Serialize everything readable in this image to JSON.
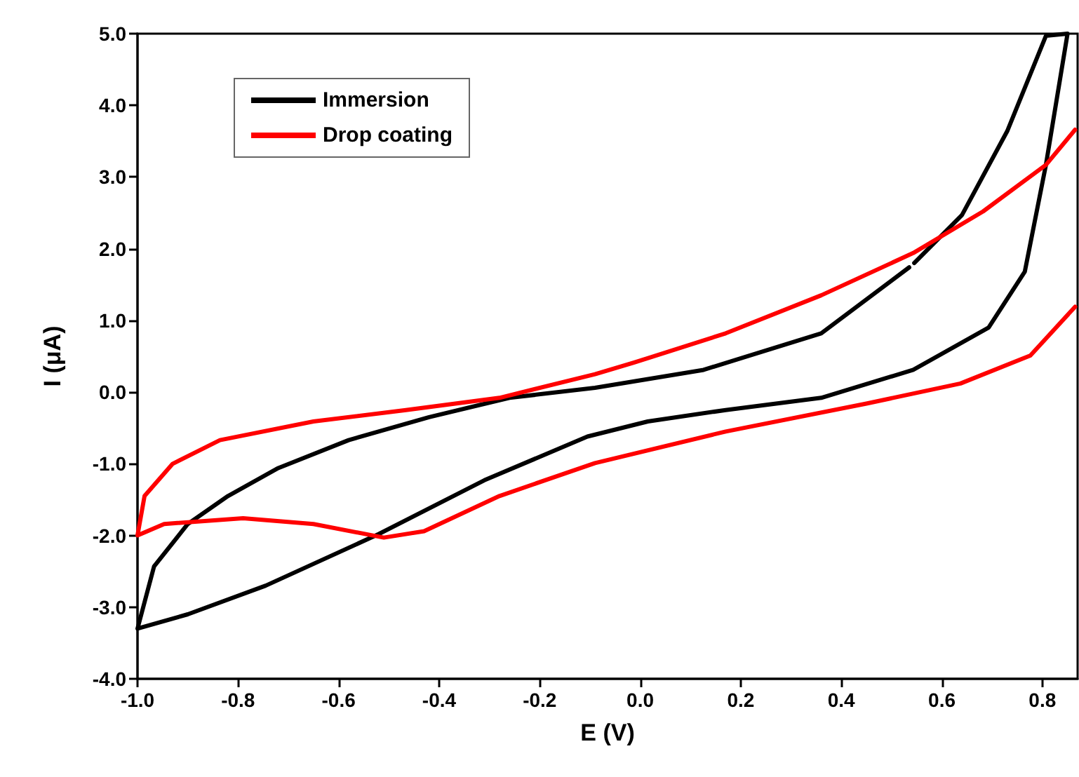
{
  "chart_data": {
    "type": "line",
    "xlabel": "E (V)",
    "ylabel": "I (μA)",
    "xlim": [
      -1.0,
      0.87
    ],
    "ylim": [
      -4.0,
      5.0
    ],
    "xticks": [
      {
        "value": -1.0,
        "label": "-1.0"
      },
      {
        "value": -0.8,
        "label": "-0.8"
      },
      {
        "value": -0.6,
        "label": "-0.6"
      },
      {
        "value": -0.4,
        "label": "-0.4"
      },
      {
        "value": -0.2,
        "label": "-0.2"
      },
      {
        "value": 0.0,
        "label": "0.0"
      },
      {
        "value": 0.2,
        "label": "0.2"
      },
      {
        "value": 0.4,
        "label": "0.4"
      },
      {
        "value": 0.6,
        "label": "0.6"
      },
      {
        "value": 0.8,
        "label": "0.8"
      }
    ],
    "yticks": [
      {
        "value": -4.0,
        "label": "-4.0"
      },
      {
        "value": -3.0,
        "label": "-3.0"
      },
      {
        "value": -2.0,
        "label": "-2.0"
      },
      {
        "value": -1.0,
        "label": "-1.0"
      },
      {
        "value": 0.0,
        "label": "0.0"
      },
      {
        "value": 1.0,
        "label": "1.0"
      },
      {
        "value": 2.0,
        "label": "2.0"
      },
      {
        "value": 3.0,
        "label": "3.0"
      },
      {
        "value": 4.0,
        "label": "4.0"
      },
      {
        "value": 5.0,
        "label": "5.0"
      }
    ],
    "grid": false,
    "legend": "top left",
    "marker": "none",
    "line_style": "solid",
    "series": [
      {
        "name": "Immersion",
        "color": "#000000",
        "x": [
          0.545,
          0.64,
          0.73,
          0.807,
          0.85,
          0.807,
          0.765,
          0.693,
          0.543,
          0.36,
          0.17,
          0.015,
          -0.105,
          -0.31,
          -0.52,
          -0.745,
          -0.9,
          -1.0,
          -0.967,
          -0.9,
          -0.82,
          -0.72,
          -0.58,
          -0.42,
          -0.26,
          -0.09,
          0.126,
          0.36,
          0.535
        ],
        "values": [
          1.8,
          2.47,
          3.64,
          4.97,
          5.0,
          3.17,
          1.68,
          0.9,
          0.31,
          -0.08,
          -0.25,
          -0.41,
          -0.62,
          -1.23,
          -1.98,
          -2.7,
          -3.1,
          -3.3,
          -2.43,
          -1.84,
          -1.45,
          -1.06,
          -0.67,
          -0.35,
          -0.08,
          0.06,
          0.31,
          0.82,
          1.74
        ]
      },
      {
        "name": "Drop coating",
        "color": "#ff0000",
        "x": [
          0.865,
          0.807,
          0.682,
          0.543,
          0.36,
          0.17,
          -0.013,
          -0.09,
          -0.28,
          -0.466,
          -0.65,
          -0.836,
          -0.93,
          -0.986,
          -1.0,
          -0.947,
          -0.79,
          -0.65,
          -0.51,
          -0.43,
          -0.28,
          -0.09,
          0.17,
          0.45,
          0.637,
          0.776,
          0.865
        ],
        "values": [
          3.66,
          3.17,
          2.52,
          1.94,
          1.35,
          0.82,
          0.41,
          0.25,
          -0.08,
          -0.25,
          -0.41,
          -0.67,
          -1.0,
          -1.45,
          -2.0,
          -1.84,
          -1.76,
          -1.84,
          -2.03,
          -1.94,
          -1.45,
          -0.99,
          -0.55,
          -0.16,
          0.12,
          0.51,
          1.19
        ]
      }
    ]
  }
}
